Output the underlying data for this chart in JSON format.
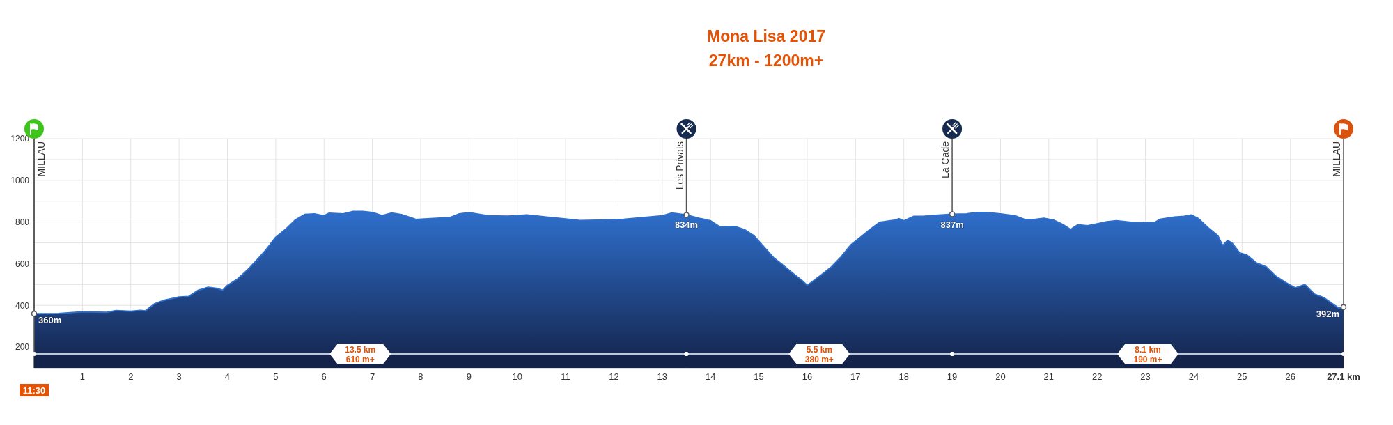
{
  "chart_data": {
    "type": "area",
    "title": "Mona Lisa 2017",
    "subtitle": "27km - 1200m+",
    "x": [
      0,
      0.5,
      1,
      1.5,
      1.7,
      2,
      2.2,
      2.3,
      2.5,
      2.7,
      3,
      3.2,
      3.4,
      3.6,
      3.8,
      3.9,
      4,
      4.2,
      4.4,
      4.6,
      4.8,
      5,
      5.2,
      5.4,
      5.6,
      5.8,
      6,
      6.1,
      6.4,
      6.6,
      6.8,
      7,
      7.2,
      7.4,
      7.6,
      7.8,
      7.9,
      8.2,
      8.6,
      8.8,
      9,
      9.4,
      9.8,
      10.2,
      10.6,
      11,
      11.3,
      11.8,
      12.2,
      12.6,
      13,
      13.2,
      13.5,
      13.8,
      14,
      14.2,
      14.5,
      14.7,
      14.9,
      15.1,
      15.3,
      15.5,
      15.7,
      15.9,
      16,
      16.1,
      16.3,
      16.5,
      16.7,
      16.9,
      17.1,
      17.3,
      17.5,
      17.8,
      17.9,
      18,
      18.2,
      18.4,
      18.6,
      19,
      19.3,
      19.5,
      19.7,
      20,
      20.3,
      20.5,
      20.7,
      20.9,
      21.1,
      21.3,
      21.45,
      21.6,
      21.8,
      22,
      22.2,
      22.4,
      22.7,
      23,
      23.2,
      23.3,
      23.6,
      23.8,
      23.95,
      24.1,
      24.3,
      24.5,
      24.6,
      24.7,
      24.8,
      24.95,
      25.1,
      25.3,
      25.5,
      25.7,
      25.9,
      26.1,
      26.3,
      26.5,
      26.7,
      26.9,
      27,
      27.1
    ],
    "values": [
      360,
      361,
      369,
      367,
      375,
      372,
      376,
      373,
      409,
      425,
      440,
      443,
      473,
      487,
      481,
      472,
      496,
      525,
      567,
      615,
      667,
      727,
      764,
      809,
      836,
      839,
      830,
      842,
      839,
      851,
      851,
      846,
      831,
      843,
      836,
      821,
      812,
      816,
      821,
      839,
      845,
      830,
      828,
      834,
      824,
      815,
      807,
      810,
      813,
      821,
      830,
      843,
      834,
      816,
      806,
      776,
      779,
      764,
      734,
      682,
      630,
      593,
      555,
      518,
      496,
      513,
      548,
      585,
      633,
      690,
      727,
      764,
      799,
      809,
      816,
      806,
      827,
      827,
      831,
      837,
      839,
      846,
      846,
      839,
      830,
      812,
      812,
      818,
      809,
      787,
      764,
      787,
      782,
      791,
      801,
      806,
      799,
      797,
      799,
      813,
      824,
      827,
      834,
      816,
      772,
      734,
      687,
      712,
      697,
      652,
      642,
      603,
      585,
      540,
      510,
      484,
      500,
      454,
      436,
      403,
      387,
      392
    ],
    "color": "#2f6fcc",
    "xlim": [
      0,
      27.1
    ],
    "xticks": [
      1,
      2,
      3,
      4,
      5,
      6,
      7,
      8,
      9,
      10,
      11,
      12,
      13,
      14,
      15,
      16,
      17,
      18,
      19,
      20,
      21,
      22,
      23,
      24,
      25,
      26,
      {
        "value": 27.1,
        "label": "27.1 km"
      }
    ],
    "ylim": [
      100,
      1200
    ],
    "yticks": [
      200,
      400,
      {
        "value": 500,
        "label": null
      },
      600,
      {
        "value": 700,
        "label": null
      },
      800,
      {
        "value": 900,
        "label": null
      },
      1000,
      {
        "value": 1100,
        "label": null
      },
      1200
    ],
    "grid": true,
    "ref_lines": [
      {
        "axis": "x",
        "value": 0,
        "label": "MILLAU"
      },
      {
        "axis": "x",
        "value": 13.5,
        "label": "Les Privats"
      },
      {
        "axis": "x",
        "value": 19,
        "label": "La Cade"
      },
      {
        "axis": "x",
        "value": 27.1,
        "label": "MILLAU"
      }
    ],
    "bands": [
      {
        "axis": "x",
        "from": 0,
        "to": 13.5,
        "label": "13.5 km\n610 m+",
        "color": "#14234a"
      },
      {
        "axis": "x",
        "from": 13.5,
        "to": 19,
        "label": "5.5 km\n380 m+",
        "color": "#14234a"
      },
      {
        "axis": "x",
        "from": 19,
        "to": 27.1,
        "label": "8.1 km\n190 m+",
        "color": "#14234a"
      }
    ],
    "annotations": [
      {
        "text": "360m",
        "x": 0,
        "y": 360
      },
      {
        "text": "834m",
        "x": 13.5,
        "y": 834
      },
      {
        "text": "837m",
        "x": 19,
        "y": 837
      },
      {
        "text": "392m",
        "x": 27.1,
        "y": 392
      },
      "11:30"
    ]
  }
}
